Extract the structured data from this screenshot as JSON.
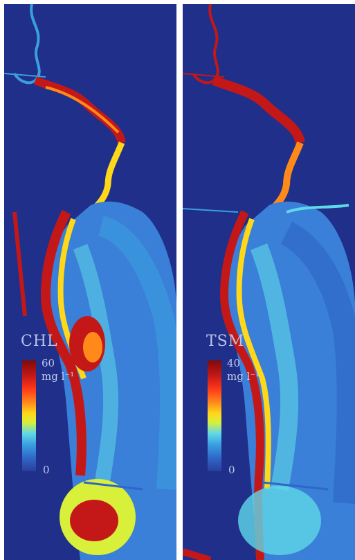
{
  "panels": [
    {
      "key": "chl",
      "title": "CHL",
      "max": "60",
      "unit": "mg l⁻¹",
      "min": "0"
    },
    {
      "key": "tsm",
      "title": "TSM",
      "max": "40",
      "unit": "mg l⁻¹",
      "min": "0"
    }
  ],
  "colors": {
    "background_water": "#1f2f8a",
    "low": "#2a3e9a",
    "mid_low": "#3a9fe0",
    "mid": "#ffd81a",
    "high": "#c41818",
    "max": "#7f0a0a"
  }
}
